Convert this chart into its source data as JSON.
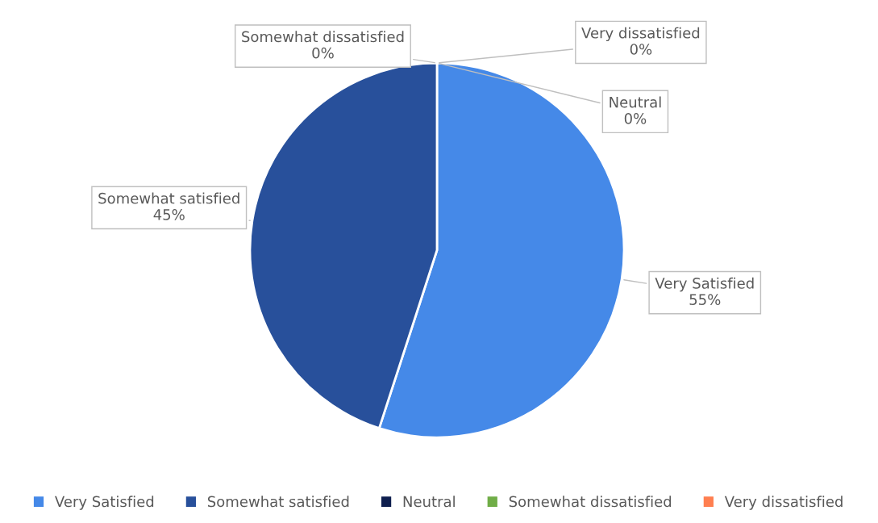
{
  "chart_data": {
    "type": "pie",
    "categories": [
      "Very Satisfied",
      "Somewhat satisfied",
      "Neutral",
      "Somewhat dissatisfied",
      "Very dissatisfied"
    ],
    "values": [
      55,
      45,
      0,
      0,
      0
    ],
    "colors": [
      "#4589e8",
      "#28509b",
      "#0f1f4f",
      "#70ad47",
      "#ff7f50"
    ],
    "value_labels": [
      "55%",
      "45%",
      "0%",
      "0%",
      "0%"
    ],
    "legend": "bottom"
  }
}
